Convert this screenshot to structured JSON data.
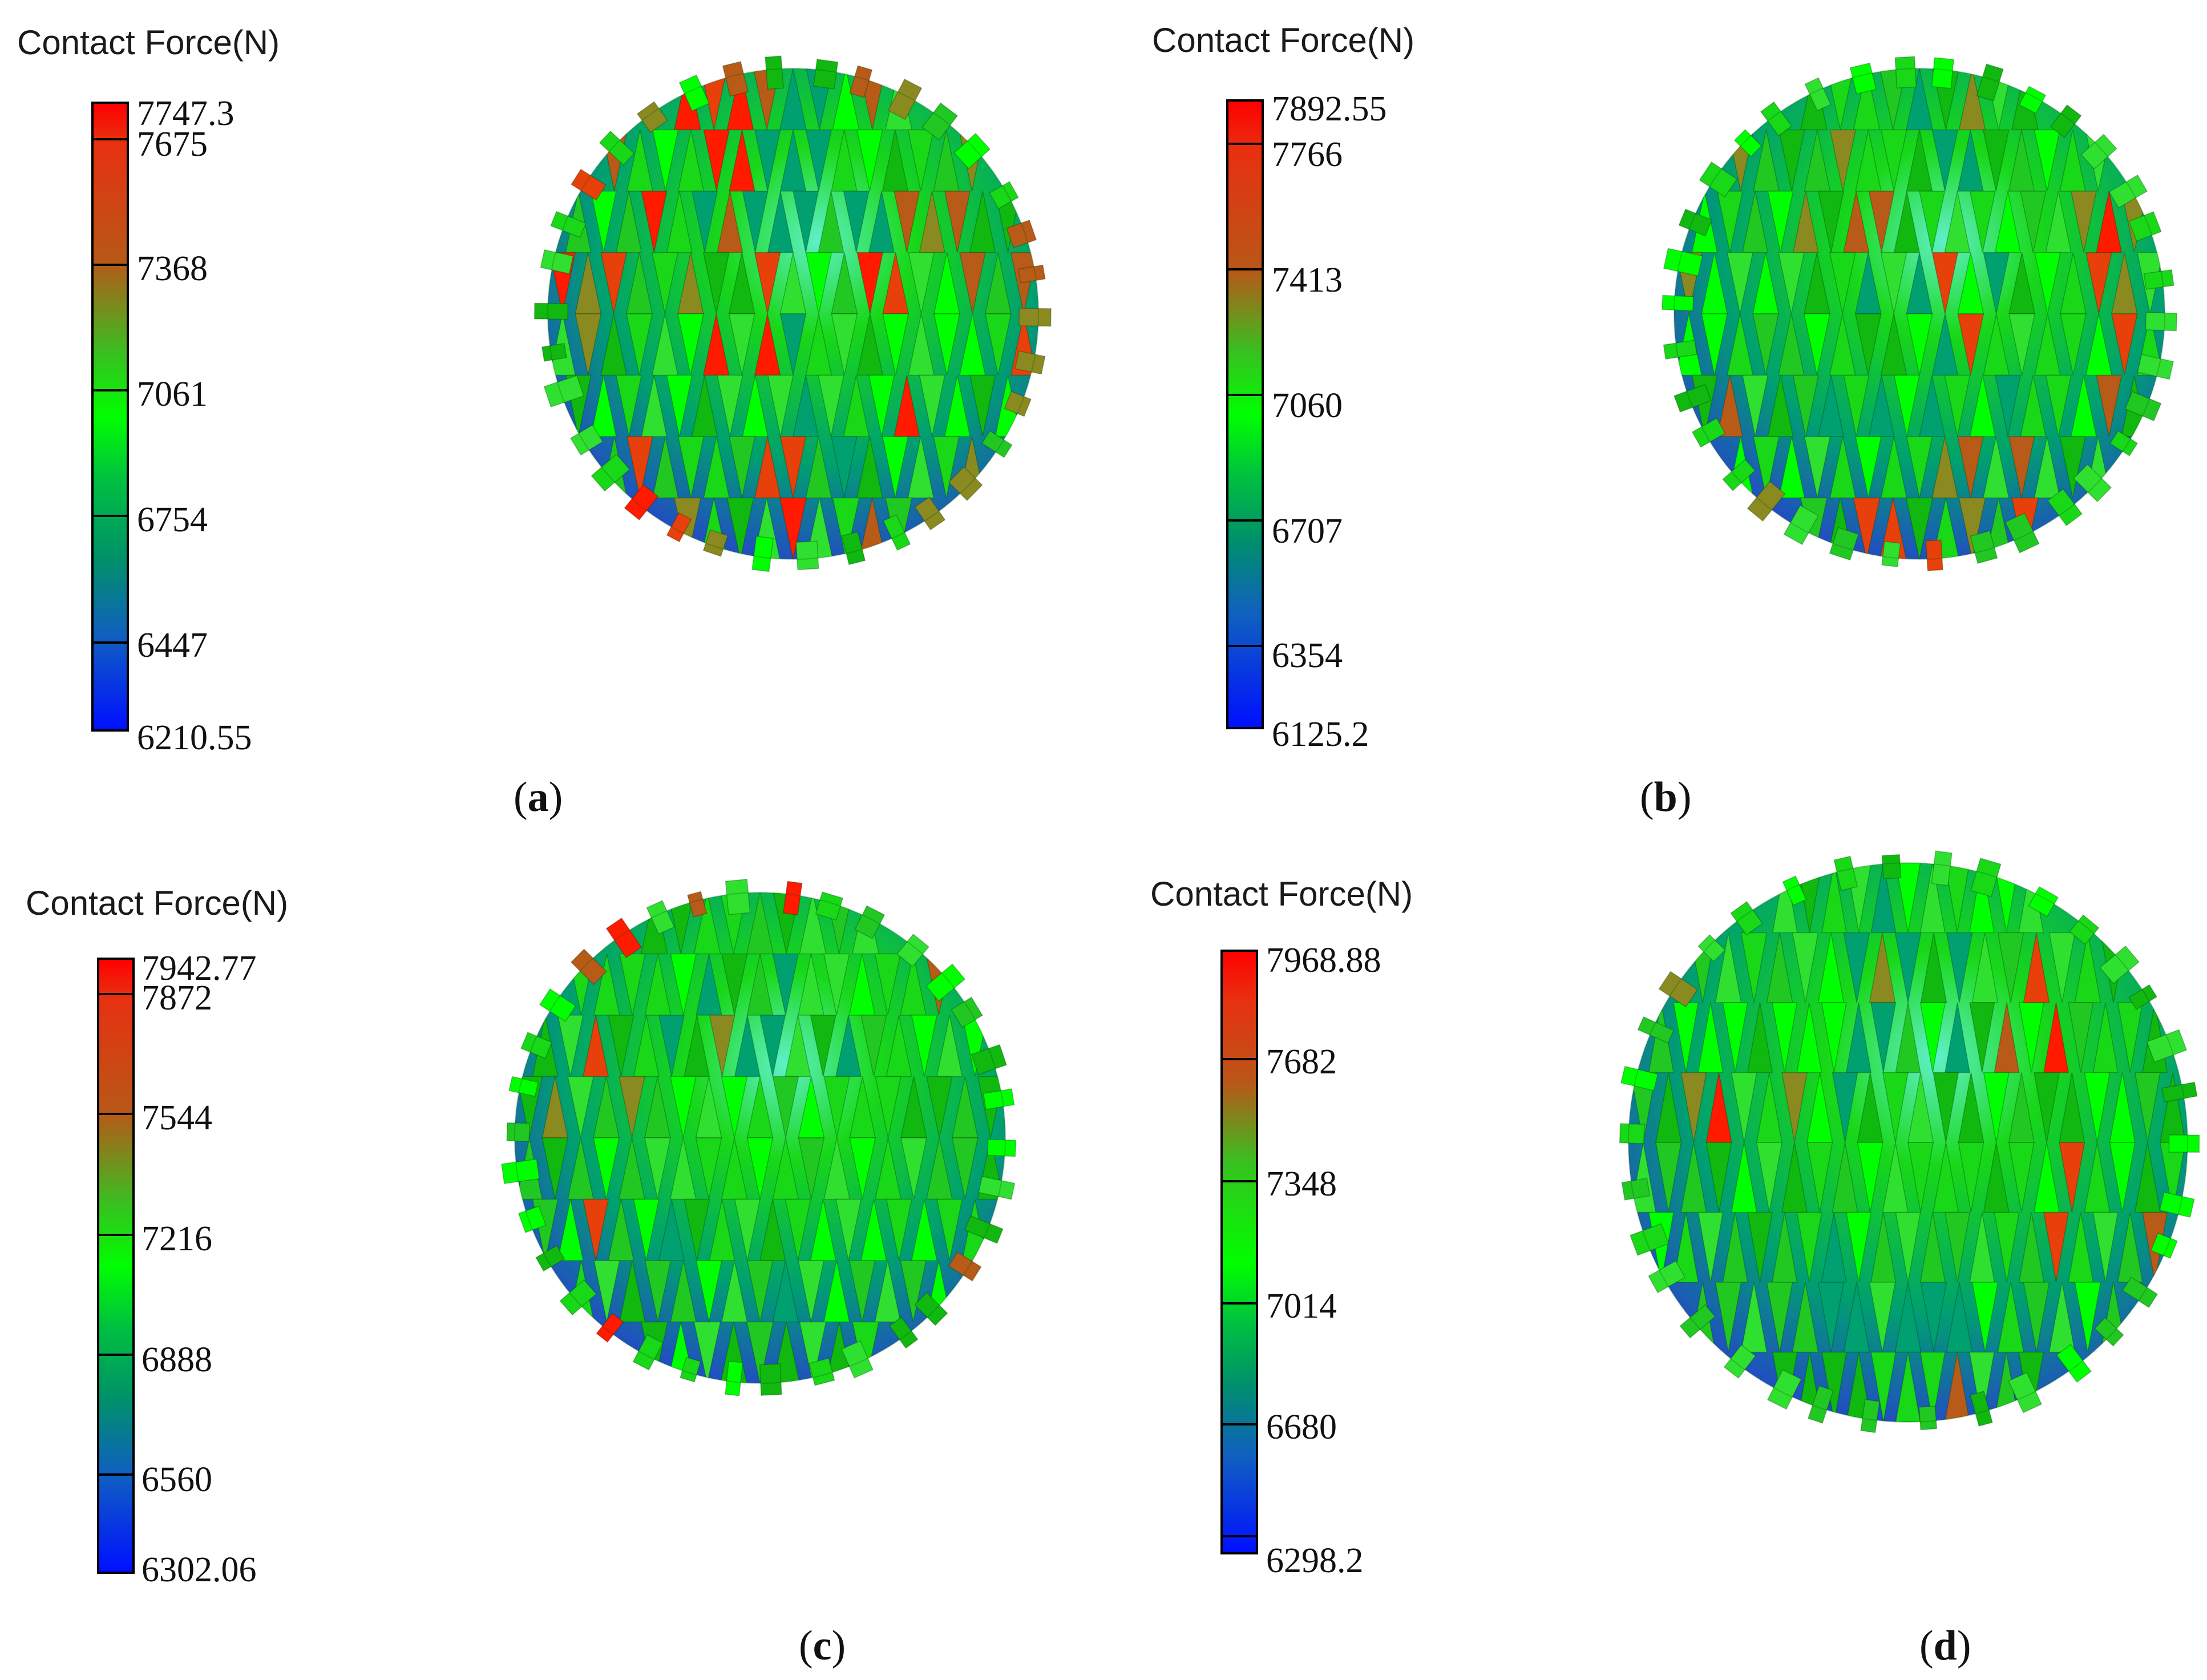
{
  "panels": [
    {
      "id": "a",
      "title": "Contact Force(N)",
      "max": "7747.3",
      "ticks": [
        "7675",
        "7368",
        "7061",
        "6754",
        "6447"
      ],
      "min": "6210.55",
      "label_open": "(",
      "label_letter": "a",
      "label_close": ")"
    },
    {
      "id": "b",
      "title": "Contact Force(N)",
      "max": "7892.55",
      "ticks": [
        "7766",
        "7413",
        "7060",
        "6707",
        "6354"
      ],
      "min": "6125.2",
      "label_open": "(",
      "label_letter": "b",
      "label_close": ")"
    },
    {
      "id": "c",
      "title": "Contact Force(N)",
      "max": "7942.77",
      "ticks": [
        "7872",
        "7544",
        "7216",
        "6888",
        "6560"
      ],
      "min": "6302.06",
      "label_open": "(",
      "label_letter": "c",
      "label_close": ")"
    },
    {
      "id": "d",
      "title": "Contact Force(N)",
      "max": "7968.88",
      "ticks": [
        "7682",
        "7348",
        "7014",
        "6680"
      ],
      "min": "6298.2",
      "label_open": "(",
      "label_letter": "d",
      "label_close": ")"
    }
  ],
  "colors": {
    "red": "#ff1a00",
    "orange_red": "#e8400a",
    "brown": "#b85a18",
    "olive": "#8a8a20",
    "green": "#18d818",
    "bright_green": "#00ff00",
    "teal": "#00a070",
    "blue": "#2050c0",
    "deep_blue": "#0000ff",
    "cyan_highlight": "#60f0c8"
  }
}
